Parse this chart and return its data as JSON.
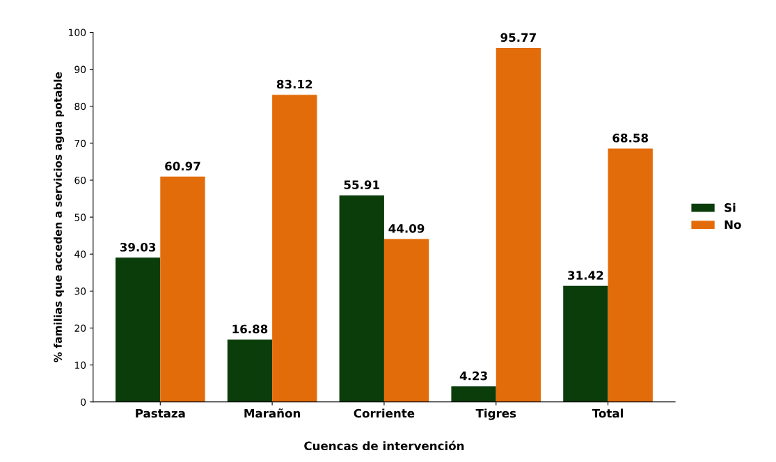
{
  "chart_data": {
    "type": "bar",
    "xlabel": "Cuencas de intervención",
    "ylabel": "% familias que acceden a servicios agua potable",
    "categories": [
      "Pastaza",
      "Marañon",
      "Corriente",
      "Tigres",
      "Total"
    ],
    "series": [
      {
        "name": "Si",
        "color": "#0b3d0b",
        "values": [
          39.03,
          16.88,
          55.91,
          4.23,
          31.42
        ]
      },
      {
        "name": "No",
        "color": "#e36c0a",
        "values": [
          60.97,
          83.12,
          44.09,
          95.77,
          68.58
        ]
      }
    ],
    "ylim": [
      0,
      100
    ],
    "yticks": [
      0,
      10,
      20,
      30,
      40,
      50,
      60,
      70,
      80,
      90,
      100
    ],
    "data_labels": true,
    "grid": false,
    "legend": "right"
  }
}
